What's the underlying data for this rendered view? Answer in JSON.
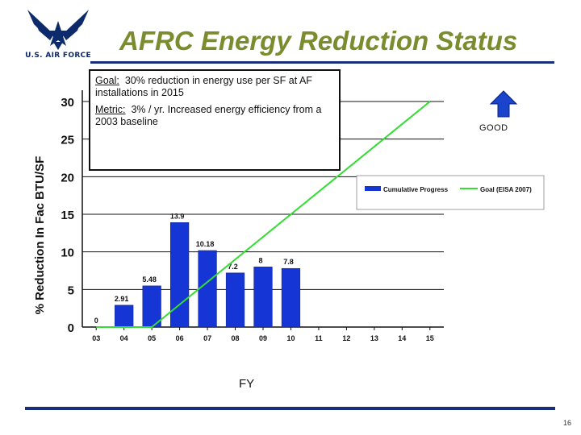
{
  "logo": {
    "text": "U.S. AIR FORCE",
    "icon": "air-force-wings-star-icon",
    "color": "#0d2a6a"
  },
  "title": "AFRC Energy Reduction Status",
  "goal_box": {
    "goal_label": "Goal:",
    "goal_text": "30% reduction in energy use per SF at AF installations in 2015",
    "metric_label": "Metric:",
    "metric_text": "3% / yr. Increased energy efficiency from a 2003 baseline"
  },
  "good_indicator": {
    "label": "GOOD",
    "icon": "arrow-up-icon",
    "color": "#1a44cc"
  },
  "page_number": "16",
  "chart_data": {
    "type": "bar",
    "title": "",
    "xlabel": "FY",
    "ylabel": "% Reduction In Fac BTU/SF",
    "ylim": [
      0,
      30
    ],
    "yticks": [
      "0",
      "5",
      "10",
      "15",
      "20",
      "25",
      "30"
    ],
    "categories": [
      "03",
      "04",
      "05",
      "06",
      "07",
      "08",
      "09",
      "10",
      "11",
      "12",
      "13",
      "14",
      "15"
    ],
    "grid": "horizontal",
    "legend_position": "right",
    "series": [
      {
        "name": "Cumulative Progress",
        "type": "bar",
        "color": "#1536d4",
        "values": [
          0,
          2.91,
          5.48,
          13.9,
          10.18,
          7.2,
          8,
          7.8,
          null,
          null,
          null,
          null,
          null
        ],
        "labels": [
          "0",
          "2.91",
          "5.48",
          "13.9",
          "10.18",
          "7.2",
          "8",
          "7.8",
          "",
          "",
          "",
          "",
          ""
        ]
      },
      {
        "name": "Goal (EISA 2007)",
        "type": "line",
        "color": "#33dd33",
        "points": [
          [
            "03",
            0
          ],
          [
            "05",
            0
          ],
          [
            "15",
            30
          ]
        ]
      }
    ]
  }
}
